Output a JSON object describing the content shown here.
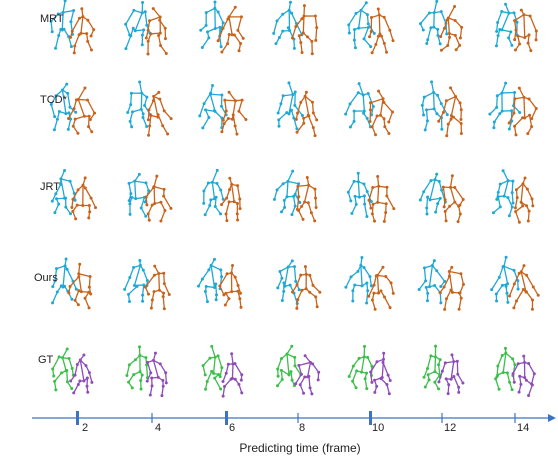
{
  "figure": {
    "rows": [
      {
        "label": "MRT",
        "colors": [
          "#1fa8d6",
          "#c8631b"
        ]
      },
      {
        "label": "TCD*",
        "colors": [
          "#1fa8d6",
          "#c8631b"
        ]
      },
      {
        "label": "JRT",
        "colors": [
          "#1fa8d6",
          "#c8631b"
        ]
      },
      {
        "label": "Ours",
        "colors": [
          "#1fa8d6",
          "#c8631b"
        ]
      },
      {
        "label": "GT",
        "colors": [
          "#3cbf4a",
          "#8e4cb8"
        ]
      }
    ],
    "axis": {
      "ticks": [
        "2",
        "4",
        "6",
        "8",
        "10",
        "12",
        "14"
      ],
      "title": "Predicting time (frame)",
      "color": "#3a74c4"
    }
  }
}
